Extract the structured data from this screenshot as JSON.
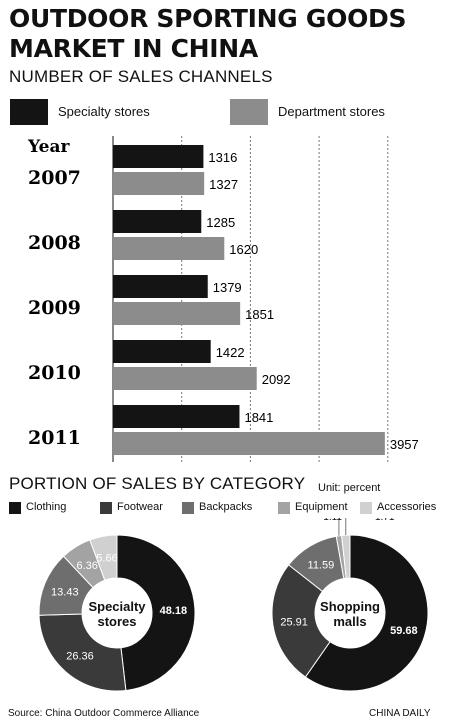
{
  "title": "OUTDOOR SPORTING GOODS MARKET IN CHINA",
  "section1": {
    "title": "NUMBER OF SALES CHANNELS",
    "year_header": "Year"
  },
  "section2": {
    "title": "PORTION OF SALES BY CATEGORY",
    "unit": "Unit: percent"
  },
  "source": "Source: China Outdoor Commerce Alliance",
  "credit": "CHINA DAILY",
  "colors": {
    "specialty": "#141414",
    "department": "#8c8c8c",
    "clothing": "#141414",
    "footwear": "#3a3a3a",
    "backpacks": "#6e6e6e",
    "equipment": "#a3a3a3",
    "accessories": "#d0d0d0"
  },
  "chart_data": [
    {
      "type": "bar",
      "orientation": "horizontal",
      "title": "NUMBER OF SALES CHANNELS",
      "categories": [
        "2007",
        "2008",
        "2009",
        "2010",
        "2011"
      ],
      "series": [
        {
          "name": "Specialty stores",
          "values": [
            1316,
            1285,
            1379,
            1422,
            1841
          ]
        },
        {
          "name": "Department stores",
          "values": [
            1327,
            1620,
            1851,
            2092,
            3957
          ]
        }
      ],
      "xlim": [
        0,
        4000
      ],
      "grid": true,
      "legend": "top"
    },
    {
      "type": "pie",
      "title": "PORTION OF SALES BY CATEGORY",
      "subtitle": "Unit: percent",
      "categories": [
        "Clothing",
        "Footwear",
        "Backpacks",
        "Equipment",
        "Accessories"
      ],
      "charts": [
        {
          "name": "Specialty stores",
          "values": [
            48.18,
            26.36,
            13.43,
            6.36,
            5.66
          ]
        },
        {
          "name": "Shopping malls",
          "values": [
            59.68,
            25.91,
            11.59,
            1.11,
            1.71
          ]
        }
      ]
    }
  ]
}
